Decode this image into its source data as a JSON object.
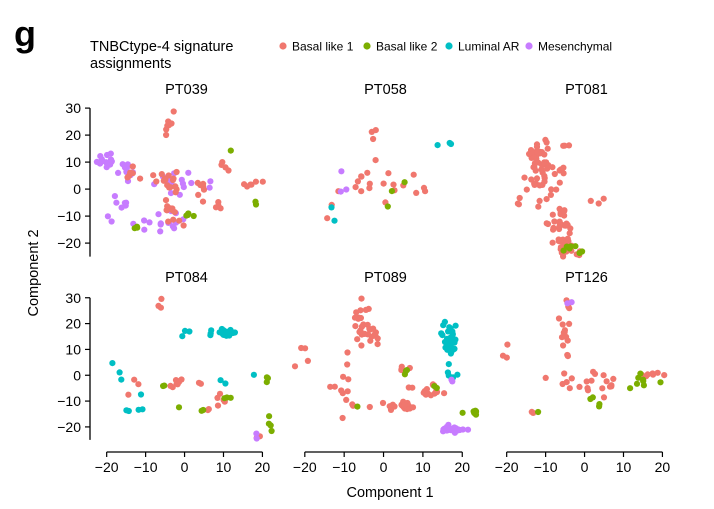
{
  "figure": {
    "panel_label": "g",
    "legend_title_lines": [
      "TNBCtype-4 signature",
      "assignments"
    ],
    "x_axis_title": "Component 1",
    "y_axis_title": "Component 2"
  },
  "chart_data": {
    "type": "scatter",
    "facets": [
      "PT039",
      "PT058",
      "PT081",
      "PT084",
      "PT089",
      "PT126"
    ],
    "xlabel": "Component 1",
    "ylabel": "Component 2",
    "xlim": [
      -23,
      24
    ],
    "ylim": [
      -27,
      33
    ],
    "xticks": [
      -20,
      -10,
      0,
      10,
      20
    ],
    "yticks": [
      -20,
      -10,
      0,
      10,
      20,
      30
    ],
    "grid": false,
    "legend_position": "top",
    "series": [
      {
        "name": "Basal like 1",
        "color": "#F0776E"
      },
      {
        "name": "Basal like 2",
        "color": "#7CAE00"
      },
      {
        "name": "Luminal AR",
        "color": "#00BFC4"
      },
      {
        "name": "Mesenchymal",
        "color": "#C77CFF"
      }
    ],
    "clusters": {
      "PT039": [
        {
          "s": 3,
          "n": 14,
          "x": -20.5,
          "y": 11,
          "sx": 1.5,
          "sy": 1.5
        },
        {
          "s": 3,
          "n": 10,
          "x": -15,
          "y": 7,
          "sx": 2,
          "sy": 1.5
        },
        {
          "s": 3,
          "n": 8,
          "x": -6,
          "y": 4,
          "sx": 4,
          "sy": 3
        },
        {
          "s": 3,
          "n": 14,
          "x": -10,
          "y": -13,
          "sx": 4,
          "sy": 1.5
        },
        {
          "s": 3,
          "n": 6,
          "x": -17,
          "y": -4,
          "sx": 2,
          "sy": 2
        },
        {
          "s": 3,
          "n": 8,
          "x": 1,
          "y": 1,
          "sx": 3,
          "sy": 2
        },
        {
          "s": 3,
          "n": 5,
          "x": -2,
          "y": -10,
          "sx": 2,
          "sy": 2
        },
        {
          "s": 0,
          "n": 8,
          "x": -4,
          "y": 22,
          "sx": 0.6,
          "sy": 4
        },
        {
          "s": 0,
          "n": 14,
          "x": -4,
          "y": 3,
          "sx": 1.5,
          "sy": 3
        },
        {
          "s": 0,
          "n": 12,
          "x": -3,
          "y": -8,
          "sx": 1.5,
          "sy": 3
        },
        {
          "s": 0,
          "n": 5,
          "x": -14,
          "y": 6,
          "sx": 1.5,
          "sy": 1.2
        },
        {
          "s": 0,
          "n": 6,
          "x": 3,
          "y": 1,
          "sx": 2,
          "sy": 1.5
        },
        {
          "s": 0,
          "n": 5,
          "x": 8,
          "y": -5,
          "sx": 1.5,
          "sy": 1.5
        },
        {
          "s": 0,
          "n": 6,
          "x": 17,
          "y": 1.5,
          "sx": 1.5,
          "sy": 0.8
        },
        {
          "s": 0,
          "n": 4,
          "x": 10,
          "y": 8,
          "sx": 1,
          "sy": 1.5
        },
        {
          "s": 0,
          "n": 3,
          "x": -9,
          "y": 4,
          "sx": 1,
          "sy": 1
        },
        {
          "s": 1,
          "n": 4,
          "x": 1,
          "y": -9,
          "sx": 1.5,
          "sy": 1
        },
        {
          "s": 1,
          "n": 3,
          "x": -12,
          "y": -14,
          "sx": 1,
          "sy": 0.5
        },
        {
          "s": 1,
          "n": 2,
          "x": 18,
          "y": -5,
          "sx": 0.5,
          "sy": 0.5
        },
        {
          "s": 1,
          "n": 1,
          "x": 12,
          "y": 14,
          "sx": 0.3,
          "sy": 0.3
        }
      ],
      "PT058": [
        {
          "s": 0,
          "n": 12,
          "x": -2,
          "y": 3,
          "sx": 3,
          "sy": 3
        },
        {
          "s": 0,
          "n": 3,
          "x": -2,
          "y": 20,
          "sx": 1.5,
          "sy": 3
        },
        {
          "s": 0,
          "n": 4,
          "x": 3,
          "y": 1,
          "sx": 2,
          "sy": 2
        },
        {
          "s": 0,
          "n": 3,
          "x": 10,
          "y": -1,
          "sx": 1.5,
          "sy": 1.5
        },
        {
          "s": 0,
          "n": 3,
          "x": -12,
          "y": -3,
          "sx": 2,
          "sy": 3
        },
        {
          "s": 1,
          "n": 3,
          "x": 2,
          "y": 1,
          "sx": 2.5,
          "sy": 4
        },
        {
          "s": 2,
          "n": 3,
          "x": 16,
          "y": 16.5,
          "sx": 0.8,
          "sy": 0.5
        },
        {
          "s": 2,
          "n": 2,
          "x": -13,
          "y": -9,
          "sx": 0.5,
          "sy": 3
        },
        {
          "s": 3,
          "n": 3,
          "x": -10,
          "y": 3,
          "sx": 1,
          "sy": 3
        }
      ],
      "PT081": [
        {
          "s": 0,
          "n": 30,
          "x": -12,
          "y": 13,
          "sx": 1.5,
          "sy": 4
        },
        {
          "s": 0,
          "n": 25,
          "x": -10,
          "y": 2,
          "sx": 2.5,
          "sy": 4
        },
        {
          "s": 0,
          "n": 25,
          "x": -6,
          "y": -13,
          "sx": 1.5,
          "sy": 3
        },
        {
          "s": 0,
          "n": 25,
          "x": -4.5,
          "y": -21,
          "sx": 1.5,
          "sy": 2
        },
        {
          "s": 0,
          "n": 4,
          "x": -6,
          "y": 5,
          "sx": 0.5,
          "sy": 1.5
        },
        {
          "s": 0,
          "n": 3,
          "x": -16,
          "y": -5,
          "sx": 1.5,
          "sy": 1
        },
        {
          "s": 0,
          "n": 3,
          "x": 4,
          "y": -3,
          "sx": 1,
          "sy": 4
        },
        {
          "s": 0,
          "n": 3,
          "x": -5,
          "y": 16,
          "sx": 0.4,
          "sy": 0.6
        },
        {
          "s": 1,
          "n": 6,
          "x": -4,
          "y": -22,
          "sx": 0.8,
          "sy": 0.8
        },
        {
          "s": 1,
          "n": 2,
          "x": -1,
          "y": -23,
          "sx": 0.5,
          "sy": 0.5
        }
      ],
      "PT084": [
        {
          "s": 2,
          "n": 22,
          "x": 10.5,
          "y": 16.5,
          "sx": 1.5,
          "sy": 1.2
        },
        {
          "s": 2,
          "n": 3,
          "x": 0,
          "y": 17,
          "sx": 1,
          "sy": 4
        },
        {
          "s": 2,
          "n": 2,
          "x": -14,
          "y": -13,
          "sx": 0.5,
          "sy": 1
        },
        {
          "s": 2,
          "n": 2,
          "x": -11,
          "y": -13,
          "sx": 0.8,
          "sy": 0.5
        },
        {
          "s": 2,
          "n": 3,
          "x": -17,
          "y": 0,
          "sx": 1,
          "sy": 5
        },
        {
          "s": 2,
          "n": 2,
          "x": 10,
          "y": -3,
          "sx": 1,
          "sy": 1
        },
        {
          "s": 2,
          "n": 1,
          "x": 18,
          "y": 0,
          "sx": 0.3,
          "sy": 0.3
        },
        {
          "s": 2,
          "n": 1,
          "x": -11,
          "y": -7,
          "sx": 0.3,
          "sy": 0.3
        },
        {
          "s": 0,
          "n": 8,
          "x": -2,
          "y": -3,
          "sx": 1,
          "sy": 1
        },
        {
          "s": 0,
          "n": 6,
          "x": 9,
          "y": -10,
          "sx": 1,
          "sy": 1.5
        },
        {
          "s": 0,
          "n": 3,
          "x": -6,
          "y": 26,
          "sx": 2,
          "sy": 3
        },
        {
          "s": 0,
          "n": 3,
          "x": -13,
          "y": -4,
          "sx": 2,
          "sy": 2
        },
        {
          "s": 0,
          "n": 2,
          "x": 19,
          "y": -24,
          "sx": 0.5,
          "sy": 0.5
        },
        {
          "s": 0,
          "n": 2,
          "x": 6,
          "y": -14,
          "sx": 0.5,
          "sy": 0.5
        },
        {
          "s": 0,
          "n": 2,
          "x": 3,
          "y": -3,
          "sx": 1,
          "sy": 0.5
        },
        {
          "s": 1,
          "n": 4,
          "x": 22,
          "y": -19,
          "sx": 0.6,
          "sy": 1.2
        },
        {
          "s": 1,
          "n": 3,
          "x": 10,
          "y": -9,
          "sx": 1,
          "sy": 0.8
        },
        {
          "s": 1,
          "n": 3,
          "x": 21,
          "y": -1,
          "sx": 0.5,
          "sy": 1
        },
        {
          "s": 1,
          "n": 2,
          "x": 5,
          "y": -13,
          "sx": 0.5,
          "sy": 1
        },
        {
          "s": 1,
          "n": 2,
          "x": -6,
          "y": -4,
          "sx": 1,
          "sy": 1
        },
        {
          "s": 1,
          "n": 1,
          "x": -1,
          "y": -12,
          "sx": 0.3,
          "sy": 0.3
        },
        {
          "s": 3,
          "n": 2,
          "x": 19,
          "y": -24,
          "sx": 0.5,
          "sy": 0.5
        }
      ],
      "PT089": [
        {
          "s": 0,
          "n": 30,
          "x": -4,
          "y": 20,
          "sx": 2,
          "sy": 5
        },
        {
          "s": 0,
          "n": 20,
          "x": 5,
          "y": -12,
          "sx": 2,
          "sy": 0.8
        },
        {
          "s": 0,
          "n": 12,
          "x": 11,
          "y": -7,
          "sx": 2.5,
          "sy": 1.2
        },
        {
          "s": 0,
          "n": 15,
          "x": -9,
          "y": -4,
          "sx": 5,
          "sy": 7
        },
        {
          "s": 0,
          "n": 4,
          "x": 5,
          "y": 3,
          "sx": 1,
          "sy": 1
        },
        {
          "s": 0,
          "n": 3,
          "x": -20,
          "y": 11,
          "sx": 2,
          "sy": 3
        },
        {
          "s": 0,
          "n": 3,
          "x": 12,
          "y": -4,
          "sx": 1,
          "sy": 1
        },
        {
          "s": 2,
          "n": 35,
          "x": 17,
          "y": 14,
          "sx": 1,
          "sy": 3
        },
        {
          "s": 2,
          "n": 5,
          "x": 17,
          "y": 2,
          "sx": 0.6,
          "sy": 2
        },
        {
          "s": 3,
          "n": 22,
          "x": 17.5,
          "y": -21,
          "sx": 1.5,
          "sy": 0.6
        },
        {
          "s": 3,
          "n": 2,
          "x": 17,
          "y": -2,
          "sx": 0.5,
          "sy": 0.5
        },
        {
          "s": 1,
          "n": 8,
          "x": 23,
          "y": -14.5,
          "sx": 1,
          "sy": 0.6
        },
        {
          "s": 1,
          "n": 3,
          "x": 6,
          "y": 2,
          "sx": 0.5,
          "sy": 1
        },
        {
          "s": 1,
          "n": 2,
          "x": 13,
          "y": -5,
          "sx": 0.5,
          "sy": 0.5
        },
        {
          "s": 1,
          "n": 1,
          "x": -7,
          "y": -12,
          "sx": 0.3,
          "sy": 0.3
        }
      ],
      "PT126": [
        {
          "s": 0,
          "n": 15,
          "x": -5,
          "y": 13,
          "sx": 1,
          "sy": 6
        },
        {
          "s": 0,
          "n": 3,
          "x": -4.5,
          "y": 27,
          "sx": 0.5,
          "sy": 1.5
        },
        {
          "s": 0,
          "n": 15,
          "x": 6,
          "y": -2,
          "sx": 5,
          "sy": 2
        },
        {
          "s": 0,
          "n": 3,
          "x": -2,
          "y": -4,
          "sx": 2,
          "sy": 1.5
        },
        {
          "s": 0,
          "n": 3,
          "x": -20,
          "y": 10,
          "sx": 0.8,
          "sy": 2
        },
        {
          "s": 0,
          "n": 3,
          "x": -8,
          "y": -3,
          "sx": 2,
          "sy": 2
        },
        {
          "s": 0,
          "n": 6,
          "x": 17,
          "y": 0,
          "sx": 2,
          "sy": 0.5
        },
        {
          "s": 0,
          "n": 2,
          "x": -13,
          "y": -14,
          "sx": 0.5,
          "sy": 0.3
        },
        {
          "s": 1,
          "n": 8,
          "x": 14,
          "y": -2,
          "sx": 3,
          "sy": 1.5
        },
        {
          "s": 1,
          "n": 2,
          "x": 4,
          "y": -11,
          "sx": 1,
          "sy": 1
        },
        {
          "s": 1,
          "n": 2,
          "x": 2,
          "y": -9,
          "sx": 0.5,
          "sy": 0.5
        },
        {
          "s": 1,
          "n": 1,
          "x": -12,
          "y": -14,
          "sx": 0.3,
          "sy": 0.3
        },
        {
          "s": 3,
          "n": 2,
          "x": -4,
          "y": 28.5,
          "sx": 0.4,
          "sy": 0.6
        }
      ]
    }
  }
}
